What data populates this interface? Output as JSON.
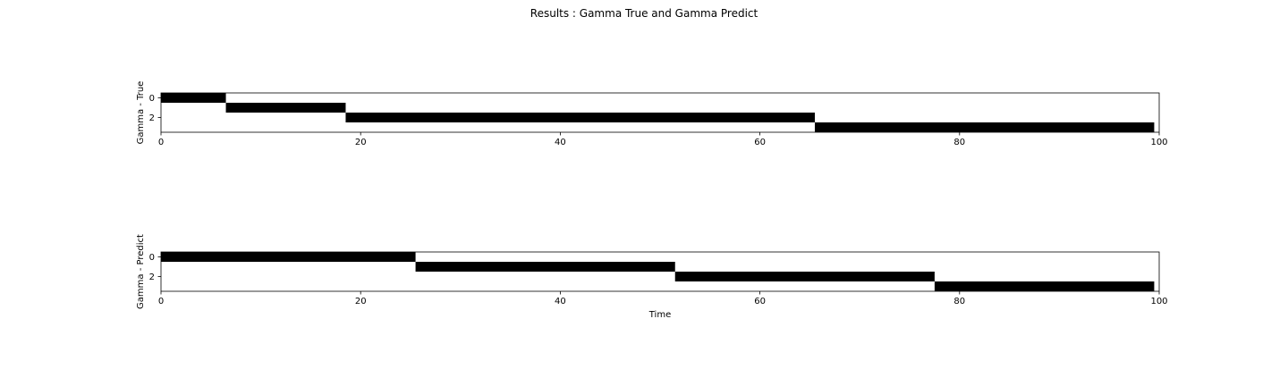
{
  "figure": {
    "title": "Results : Gamma True and Gamma Predict"
  },
  "colors": {
    "fill": "#000000",
    "background": "#ffffff",
    "axis": "#000000"
  },
  "chart_data": [
    {
      "type": "heatmap",
      "id": "gamma-true",
      "title": "",
      "xlabel": "",
      "ylabel": "Gamma - True",
      "xlim": [
        0,
        100
      ],
      "ylim": [
        3.5,
        -0.5
      ],
      "xticks": [
        0,
        20,
        40,
        60,
        80,
        100
      ],
      "xtick_labels": [
        "0",
        "20",
        "40",
        "60",
        "80",
        "100"
      ],
      "yticks": [
        0,
        2
      ],
      "ytick_labels": [
        "0",
        "2"
      ],
      "n_states": 4,
      "n_steps": 100,
      "segments": [
        {
          "state": 0,
          "start": 0,
          "end": 6.5
        },
        {
          "state": 1,
          "start": 6.5,
          "end": 18.5
        },
        {
          "state": 2,
          "start": 18.5,
          "end": 65.5
        },
        {
          "state": 3,
          "start": 65.5,
          "end": 99.5
        }
      ]
    },
    {
      "type": "heatmap",
      "id": "gamma-predict",
      "title": "",
      "xlabel": "Time",
      "ylabel": "Gamma - Predict",
      "xlim": [
        0,
        100
      ],
      "ylim": [
        3.5,
        -0.5
      ],
      "xticks": [
        0,
        20,
        40,
        60,
        80,
        100
      ],
      "xtick_labels": [
        "0",
        "20",
        "40",
        "60",
        "80",
        "100"
      ],
      "yticks": [
        0,
        2
      ],
      "ytick_labels": [
        "0",
        "2"
      ],
      "n_states": 4,
      "n_steps": 100,
      "segments": [
        {
          "state": 0,
          "start": 0,
          "end": 25.5
        },
        {
          "state": 1,
          "start": 25.5,
          "end": 51.5
        },
        {
          "state": 2,
          "start": 51.5,
          "end": 77.5
        },
        {
          "state": 3,
          "start": 77.5,
          "end": 99.5
        }
      ]
    }
  ]
}
